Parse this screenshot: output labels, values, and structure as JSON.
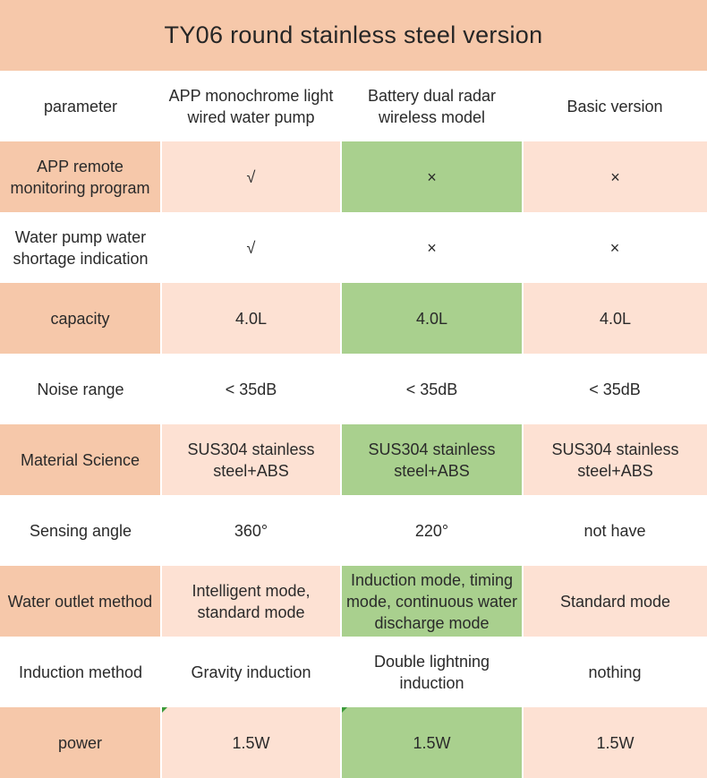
{
  "title": "TY06 round stainless steel version",
  "header": {
    "parameter": "parameter",
    "col1": "APP monochrome light wired water pump",
    "col2": "Battery dual radar wireless model",
    "col3": "Basic version"
  },
  "rows": [
    {
      "label": "APP remote monitoring program",
      "v1": "√",
      "v2": "×",
      "v3": "×"
    },
    {
      "label": "Water pump water shortage indication",
      "v1": "√",
      "v2": "×",
      "v3": "×"
    },
    {
      "label": "capacity",
      "v1": "4.0L",
      "v2": "4.0L",
      "v3": "4.0L"
    },
    {
      "label": "Noise range",
      "v1": "< 35dB",
      "v2": "< 35dB",
      "v3": "< 35dB"
    },
    {
      "label": "Material Science",
      "v1": "SUS304 stainless steel+ABS",
      "v2": "SUS304 stainless steel+ABS",
      "v3": "SUS304 stainless steel+ABS"
    },
    {
      "label": "Sensing angle",
      "v1": "360°",
      "v2": "220°",
      "v3": "not have"
    },
    {
      "label": "Water outlet method",
      "v1": "Intelligent mode, standard mode",
      "v2": "Induction mode, timing mode, continuous water discharge mode",
      "v3": "Standard mode"
    },
    {
      "label": "Induction method",
      "v1": "Gravity induction",
      "v2": "Double lightning induction",
      "v3": "nothing"
    },
    {
      "label": "power",
      "v1": "1.5W",
      "v2": "1.5W",
      "v3": "1.5W"
    }
  ]
}
